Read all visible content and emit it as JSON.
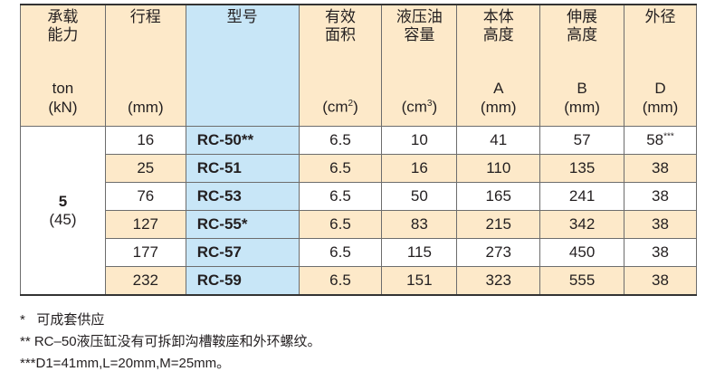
{
  "header": {
    "capacity": {
      "label": [
        "承载",
        "能力"
      ],
      "unit": [
        "ton",
        "(kN)"
      ]
    },
    "stroke": {
      "label": [
        "行程"
      ],
      "unit": [
        "(mm)"
      ]
    },
    "model": {
      "label": [
        "型号"
      ]
    },
    "area": {
      "label": [
        "有效",
        "面积"
      ],
      "unit": "(cm",
      "unit_sup": "2",
      "unit_end": ")"
    },
    "oil": {
      "label": [
        "液压油",
        "容量"
      ],
      "unit": "(cm",
      "unit_sup": "3",
      "unit_end": ")"
    },
    "body_height": {
      "label": [
        "本体",
        "高度"
      ],
      "unit": [
        "A",
        "(mm)"
      ]
    },
    "ext_height": {
      "label": [
        "伸展",
        "高度"
      ],
      "unit": [
        "B",
        "(mm)"
      ]
    },
    "outer_dia": {
      "label": [
        "外径"
      ],
      "unit": [
        "D",
        "(mm)"
      ]
    }
  },
  "capacity": {
    "ton": "5",
    "kn": "(45)"
  },
  "rows": [
    {
      "stroke": "16",
      "model": "RC-50**",
      "area": "6.5",
      "oil": "10",
      "a": "41",
      "b": "57",
      "d": "58",
      "d_sup": "***"
    },
    {
      "stroke": "25",
      "model": "RC-51",
      "area": "6.5",
      "oil": "16",
      "a": "110",
      "b": "135",
      "d": "38"
    },
    {
      "stroke": "76",
      "model": "RC-53",
      "area": "6.5",
      "oil": "50",
      "a": "165",
      "b": "241",
      "d": "38"
    },
    {
      "stroke": "127",
      "model": "RC-55*",
      "area": "6.5",
      "oil": "83",
      "a": "215",
      "b": "342",
      "d": "38"
    },
    {
      "stroke": "177",
      "model": "RC-57",
      "area": "6.5",
      "oil": "115",
      "a": "273",
      "b": "450",
      "d": "38"
    },
    {
      "stroke": "232",
      "model": "RC-59",
      "area": "6.5",
      "oil": "151",
      "a": "323",
      "b": "555",
      "d": "38"
    }
  ],
  "notes": [
    "*   可成套供应",
    "** RC–50液压缸没有可拆卸沟槽鞍座和外环螺纹。",
    "***D1=41mm,L=20mm,M=25mm。"
  ],
  "colors": {
    "header_bg": "#fde9c9",
    "model_col": "#c8e6f7"
  }
}
